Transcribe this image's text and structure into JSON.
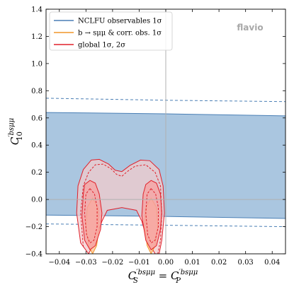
{
  "chart_data": {
    "type": "area",
    "watermark": "flavio",
    "xlabel": "C_S^{′bsμμ} = C_P^{′bsμμ}",
    "ylabel": "C_10^{′bsμμ}",
    "xlim": [
      -0.045,
      0.045
    ],
    "ylim": [
      -0.4,
      1.4
    ],
    "x_ticks": [
      -0.04,
      -0.03,
      -0.02,
      -0.01,
      0.0,
      0.01,
      0.02,
      0.03,
      0.04
    ],
    "x_tick_labels": [
      "−0.04",
      "−0.03",
      "−0.02",
      "−0.01",
      "0.00",
      "0.01",
      "0.02",
      "0.03",
      "0.04"
    ],
    "y_ticks": [
      -0.4,
      -0.2,
      0.0,
      0.2,
      0.4,
      0.6,
      0.8,
      1.0,
      1.2,
      1.4
    ],
    "y_tick_labels": [
      "−0.4",
      "−0.2",
      "0.0",
      "0.2",
      "0.4",
      "0.6",
      "0.8",
      "1.0",
      "1.2",
      "1.4"
    ],
    "reference_lines": {
      "x": 0.0,
      "y": 0.0,
      "color": "#b0b0b0"
    },
    "legend": {
      "position": "top-left",
      "entries": [
        {
          "label": "NCLFU observables 1σ",
          "color": "#4a7fb5"
        },
        {
          "label": "b → sμμ & corr. obs. 1σ",
          "color": "#f0952a"
        },
        {
          "label": "global 1σ, 2σ",
          "color": "#e0202a"
        }
      ]
    },
    "series": [
      {
        "name": "NCLFU observables 1σ",
        "kind": "band",
        "color": "#4a7fb5",
        "fill": "#aac6e0",
        "upper": {
          "x": [
            -0.045,
            0.0,
            0.045
          ],
          "y": [
            0.64,
            0.63,
            0.615
          ]
        },
        "lower": {
          "x": [
            -0.045,
            0.0,
            0.045
          ],
          "y": [
            -0.115,
            -0.125,
            -0.14
          ]
        },
        "upper_2sigma_dashed": {
          "x": [
            -0.045,
            0.0,
            0.045
          ],
          "y": [
            0.745,
            0.73,
            0.72
          ]
        },
        "lower_2sigma_dashed": {
          "x": [
            -0.045,
            0.0,
            0.045
          ],
          "y": [
            -0.18,
            -0.19,
            -0.2
          ]
        }
      },
      {
        "name": "b → sμμ & corr. obs. 1σ",
        "kind": "contours",
        "color": "#f0952a",
        "fill": "#fbc7a0",
        "contours": [
          {
            "x": [
              -0.0275,
              -0.0255,
              -0.025,
              -0.026,
              -0.0275,
              -0.029,
              -0.03,
              -0.0295,
              -0.0275
            ],
            "y": [
              0.01,
              -0.06,
              -0.2,
              -0.34,
              -0.4,
              -0.34,
              -0.2,
              -0.06,
              0.01
            ]
          },
          {
            "x": [
              -0.0055,
              -0.0035,
              -0.003,
              -0.004,
              -0.0055,
              -0.007,
              -0.008,
              -0.0075,
              -0.0055
            ],
            "y": [
              0.01,
              -0.06,
              -0.2,
              -0.34,
              -0.4,
              -0.34,
              -0.2,
              -0.06,
              0.01
            ]
          }
        ]
      },
      {
        "name": "global 1σ, 2σ",
        "kind": "contours",
        "color": "#e0202a",
        "fill_2sigma": "#f2cbcc",
        "fill_1sigma": "#f6a3a3",
        "outer_2sigma": {
          "x": [
            -0.032,
            -0.0335,
            -0.033,
            -0.031,
            -0.028,
            -0.025,
            -0.0215,
            -0.019,
            -0.0165,
            -0.0135,
            -0.0095,
            -0.006,
            -0.0025,
            -0.001,
            -0.0005,
            -0.0015,
            -0.0025,
            -0.004,
            -0.007,
            -0.009,
            -0.011,
            -0.0165,
            -0.022,
            -0.024,
            -0.0265,
            -0.029,
            -0.032
          ],
          "y": [
            -0.32,
            -0.1,
            0.1,
            0.22,
            0.29,
            0.295,
            0.26,
            0.215,
            0.205,
            0.25,
            0.29,
            0.285,
            0.22,
            0.1,
            -0.1,
            -0.3,
            -0.4,
            -0.4,
            -0.3,
            -0.16,
            -0.08,
            -0.06,
            -0.08,
            -0.16,
            -0.3,
            -0.4,
            -0.32
          ]
        },
        "dashed_2sigma": {
          "x": [
            -0.031,
            -0.032,
            -0.031,
            -0.029,
            -0.0265,
            -0.0235,
            -0.0205,
            -0.0185,
            -0.0165,
            -0.0145,
            -0.0115,
            -0.0075,
            -0.004,
            -0.002,
            -0.0015,
            -0.002,
            -0.003
          ],
          "y": [
            -0.35,
            -0.1,
            0.1,
            0.2,
            0.255,
            0.26,
            0.225,
            0.185,
            0.17,
            0.205,
            0.245,
            0.255,
            0.2,
            0.1,
            -0.1,
            -0.3,
            -0.4
          ]
        },
        "inner_1sigma": [
          {
            "x": [
              -0.0285,
              -0.0265,
              -0.025,
              -0.024,
              -0.0245,
              -0.0265,
              -0.0285,
              -0.0305,
              -0.0315,
              -0.031,
              -0.0305,
              -0.0285
            ],
            "y": [
              0.14,
              0.12,
              0.04,
              -0.1,
              -0.22,
              -0.34,
              -0.37,
              -0.3,
              -0.12,
              0.04,
              0.11,
              0.14
            ]
          },
          {
            "x": [
              -0.0055,
              -0.0035,
              -0.002,
              -0.0015,
              -0.002,
              -0.0035,
              -0.0055,
              -0.0075,
              -0.009,
              -0.0085,
              -0.0075,
              -0.0055
            ],
            "y": [
              0.14,
              0.12,
              0.04,
              -0.1,
              -0.22,
              -0.34,
              -0.37,
              -0.3,
              -0.12,
              0.04,
              0.11,
              0.14
            ]
          }
        ],
        "inner_1sigma_dashed": [
          {
            "x": [
              -0.0285,
              -0.0268,
              -0.0258,
              -0.0258,
              -0.027,
              -0.0285,
              -0.0298,
              -0.0305,
              -0.03,
              -0.0285
            ],
            "y": [
              0.08,
              0.04,
              -0.06,
              -0.2,
              -0.3,
              -0.32,
              -0.26,
              -0.1,
              0.04,
              0.08
            ]
          },
          {
            "x": [
              -0.0055,
              -0.0038,
              -0.0028,
              -0.0028,
              -0.004,
              -0.0055,
              -0.0068,
              -0.0075,
              -0.007,
              -0.0055
            ],
            "y": [
              0.08,
              0.04,
              -0.06,
              -0.2,
              -0.3,
              -0.32,
              -0.26,
              -0.1,
              0.04,
              0.08
            ]
          }
        ]
      }
    ],
    "grid": false
  }
}
